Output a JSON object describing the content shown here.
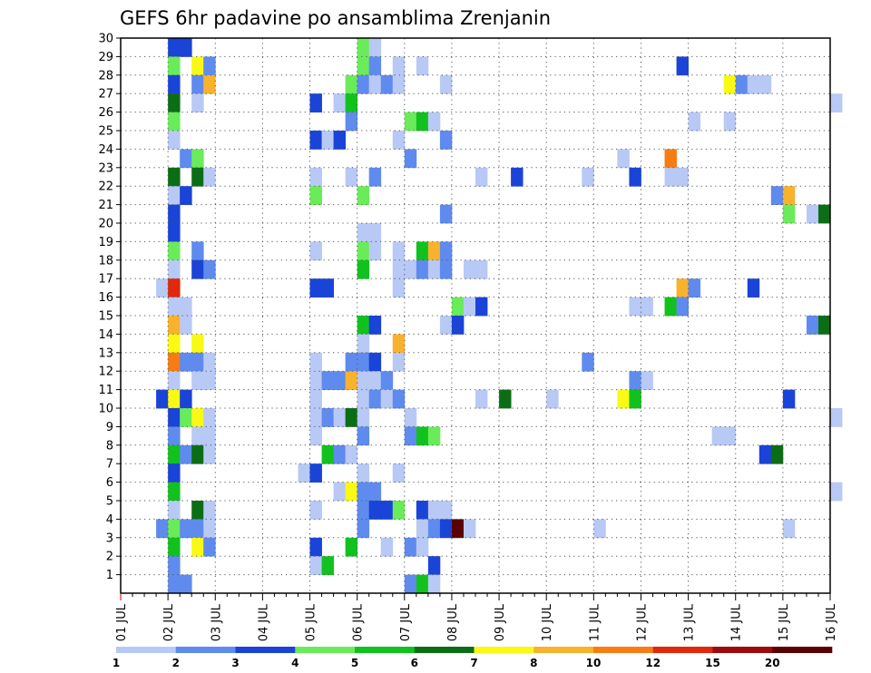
{
  "chart_data": {
    "type": "heatmap",
    "title": "GEFS 6hr padavine po ansamblima Zrenjanin",
    "xlabel": "",
    "ylabel": "",
    "x_ticks": [
      "01 JUL",
      "02 JUL",
      "03 JUL",
      "04 JUL",
      "05 JUL",
      "06 JUL",
      "07 JUL",
      "08 JUL",
      "09 JUL",
      "10 JUL",
      "11 JUL",
      "12 JUL",
      "13 JUL",
      "14 JUL",
      "15 JUL",
      "16 JUL"
    ],
    "y_ticks": [
      "1",
      "2",
      "3",
      "4",
      "5",
      "6",
      "7",
      "8",
      "9",
      "10",
      "11",
      "12",
      "13",
      "14",
      "15",
      "16",
      "17",
      "18",
      "19",
      "20",
      "21",
      "22",
      "23",
      "24",
      "25",
      "26",
      "27",
      "28",
      "29",
      "30"
    ],
    "xlim": [
      "01 JUL",
      "16 JUL"
    ],
    "ylim": [
      0,
      30
    ],
    "x_step_hours": 6,
    "grid": true,
    "colorbar": {
      "labels": [
        "1",
        "2",
        "3",
        "4",
        "5",
        "6",
        "7",
        "8",
        "10",
        "12",
        "15",
        "20"
      ],
      "colors": [
        "#b9c9f5",
        "#5f8bee",
        "#1a43d8",
        "#6aec5a",
        "#11c21e",
        "#0b6e14",
        "#f9f914",
        "#f9b22c",
        "#f77c14",
        "#e1280a",
        "#9c0a0a",
        "#5a0000"
      ]
    },
    "cells": [
      {
        "x": "02 JUL 00",
        "m": 30,
        "c": 3
      },
      {
        "x": "02 JUL 06",
        "m": 30,
        "c": 3
      },
      {
        "x": "06 JUL 00",
        "m": 30,
        "c": 4
      },
      {
        "x": "06 JUL 06",
        "m": 30,
        "c": 1
      },
      {
        "x": "02 JUL 00",
        "m": 29,
        "c": 4
      },
      {
        "x": "02 JUL 12",
        "m": 29,
        "c": 7
      },
      {
        "x": "02 JUL 18",
        "m": 29,
        "c": 2
      },
      {
        "x": "06 JUL 00",
        "m": 29,
        "c": 4
      },
      {
        "x": "06 JUL 06",
        "m": 29,
        "c": 2
      },
      {
        "x": "06 JUL 18",
        "m": 29,
        "c": 1
      },
      {
        "x": "07 JUL 06",
        "m": 29,
        "c": 1
      },
      {
        "x": "12 JUL 18",
        "m": 29,
        "c": 3
      },
      {
        "x": "02 JUL 00",
        "m": 28,
        "c": 3
      },
      {
        "x": "02 JUL 12",
        "m": 28,
        "c": 2
      },
      {
        "x": "02 JUL 18",
        "m": 28,
        "c": 8
      },
      {
        "x": "05 JUL 18",
        "m": 28,
        "c": 4
      },
      {
        "x": "06 JUL 00",
        "m": 28,
        "c": 2
      },
      {
        "x": "06 JUL 06",
        "m": 28,
        "c": 1
      },
      {
        "x": "06 JUL 12",
        "m": 28,
        "c": 2
      },
      {
        "x": "06 JUL 18",
        "m": 28,
        "c": 1
      },
      {
        "x": "07 JUL 18",
        "m": 28,
        "c": 1
      },
      {
        "x": "13 JUL 18",
        "m": 28,
        "c": 7
      },
      {
        "x": "14 JUL 00",
        "m": 28,
        "c": 2
      },
      {
        "x": "14 JUL 06",
        "m": 28,
        "c": 1
      },
      {
        "x": "14 JUL 12",
        "m": 28,
        "c": 1
      },
      {
        "x": "02 JUL 00",
        "m": 27,
        "c": 6
      },
      {
        "x": "02 JUL 12",
        "m": 27,
        "c": 1
      },
      {
        "x": "05 JUL 00",
        "m": 27,
        "c": 3
      },
      {
        "x": "05 JUL 12",
        "m": 27,
        "c": 1
      },
      {
        "x": "05 JUL 18",
        "m": 27,
        "c": 5
      },
      {
        "x": "16 JUL 00",
        "m": 27,
        "c": 1
      },
      {
        "x": "02 JUL 00",
        "m": 26,
        "c": 4
      },
      {
        "x": "05 JUL 18",
        "m": 26,
        "c": 2
      },
      {
        "x": "07 JUL 00",
        "m": 26,
        "c": 4
      },
      {
        "x": "07 JUL 06",
        "m": 26,
        "c": 5
      },
      {
        "x": "07 JUL 12",
        "m": 26,
        "c": 1
      },
      {
        "x": "13 JUL 00",
        "m": 26,
        "c": 1
      },
      {
        "x": "13 JUL 18",
        "m": 26,
        "c": 1
      },
      {
        "x": "02 JUL 00",
        "m": 25,
        "c": 1
      },
      {
        "x": "05 JUL 00",
        "m": 25,
        "c": 3
      },
      {
        "x": "05 JUL 06",
        "m": 25,
        "c": 1
      },
      {
        "x": "05 JUL 12",
        "m": 25,
        "c": 3
      },
      {
        "x": "06 JUL 18",
        "m": 25,
        "c": 1
      },
      {
        "x": "07 JUL 18",
        "m": 25,
        "c": 2
      },
      {
        "x": "02 JUL 06",
        "m": 24,
        "c": 2
      },
      {
        "x": "02 JUL 12",
        "m": 24,
        "c": 4
      },
      {
        "x": "07 JUL 00",
        "m": 24,
        "c": 2
      },
      {
        "x": "11 JUL 12",
        "m": 24,
        "c": 1
      },
      {
        "x": "12 JUL 12",
        "m": 24,
        "c": 9
      },
      {
        "x": "02 JUL 00",
        "m": 23,
        "c": 6
      },
      {
        "x": "02 JUL 12",
        "m": 23,
        "c": 6
      },
      {
        "x": "02 JUL 18",
        "m": 23,
        "c": 1
      },
      {
        "x": "05 JUL 00",
        "m": 23,
        "c": 1
      },
      {
        "x": "05 JUL 18",
        "m": 23,
        "c": 1
      },
      {
        "x": "06 JUL 06",
        "m": 23,
        "c": 2
      },
      {
        "x": "08 JUL 12",
        "m": 23,
        "c": 1
      },
      {
        "x": "09 JUL 06",
        "m": 23,
        "c": 3
      },
      {
        "x": "10 JUL 18",
        "m": 23,
        "c": 1
      },
      {
        "x": "11 JUL 18",
        "m": 23,
        "c": 3
      },
      {
        "x": "12 JUL 12",
        "m": 23,
        "c": 1
      },
      {
        "x": "12 JUL 18",
        "m": 23,
        "c": 1
      },
      {
        "x": "02 JUL 00",
        "m": 22,
        "c": 1
      },
      {
        "x": "02 JUL 06",
        "m": 22,
        "c": 3
      },
      {
        "x": "05 JUL 00",
        "m": 22,
        "c": 4
      },
      {
        "x": "06 JUL 00",
        "m": 22,
        "c": 4
      },
      {
        "x": "14 JUL 18",
        "m": 22,
        "c": 2
      },
      {
        "x": "15 JUL 00",
        "m": 22,
        "c": 8
      },
      {
        "x": "02 JUL 00",
        "m": 21,
        "c": 3
      },
      {
        "x": "07 JUL 18",
        "m": 21,
        "c": 2
      },
      {
        "x": "15 JUL 00",
        "m": 21,
        "c": 4
      },
      {
        "x": "15 JUL 12",
        "m": 21,
        "c": 1
      },
      {
        "x": "15 JUL 18",
        "m": 21,
        "c": 6
      },
      {
        "x": "02 JUL 00",
        "m": 20,
        "c": 3
      },
      {
        "x": "06 JUL 00",
        "m": 20,
        "c": 1
      },
      {
        "x": "06 JUL 06",
        "m": 20,
        "c": 1
      },
      {
        "x": "02 JUL 00",
        "m": 19,
        "c": 4
      },
      {
        "x": "02 JUL 12",
        "m": 19,
        "c": 2
      },
      {
        "x": "05 JUL 00",
        "m": 19,
        "c": 1
      },
      {
        "x": "06 JUL 00",
        "m": 19,
        "c": 4
      },
      {
        "x": "06 JUL 06",
        "m": 19,
        "c": 1
      },
      {
        "x": "06 JUL 18",
        "m": 19,
        "c": 1
      },
      {
        "x": "07 JUL 06",
        "m": 19,
        "c": 5
      },
      {
        "x": "07 JUL 12",
        "m": 19,
        "c": 8
      },
      {
        "x": "07 JUL 18",
        "m": 19,
        "c": 2
      },
      {
        "x": "02 JUL 00",
        "m": 18,
        "c": 1
      },
      {
        "x": "02 JUL 12",
        "m": 18,
        "c": 3
      },
      {
        "x": "02 JUL 18",
        "m": 18,
        "c": 2
      },
      {
        "x": "06 JUL 00",
        "m": 18,
        "c": 5
      },
      {
        "x": "06 JUL 18",
        "m": 18,
        "c": 1
      },
      {
        "x": "07 JUL 00",
        "m": 18,
        "c": 1
      },
      {
        "x": "07 JUL 06",
        "m": 18,
        "c": 2
      },
      {
        "x": "07 JUL 12",
        "m": 18,
        "c": 1
      },
      {
        "x": "07 JUL 18",
        "m": 18,
        "c": 2
      },
      {
        "x": "08 JUL 06",
        "m": 18,
        "c": 1
      },
      {
        "x": "08 JUL 12",
        "m": 18,
        "c": 1
      },
      {
        "x": "01 JUL 18",
        "m": 17,
        "c": 1
      },
      {
        "x": "02 JUL 00",
        "m": 17,
        "c": 10
      },
      {
        "x": "05 JUL 00",
        "m": 17,
        "c": 3
      },
      {
        "x": "05 JUL 06",
        "m": 17,
        "c": 3
      },
      {
        "x": "06 JUL 18",
        "m": 17,
        "c": 1
      },
      {
        "x": "12 JUL 18",
        "m": 17,
        "c": 8
      },
      {
        "x": "13 JUL 00",
        "m": 17,
        "c": 2
      },
      {
        "x": "14 JUL 06",
        "m": 17,
        "c": 3
      },
      {
        "x": "02 JUL 00",
        "m": 16,
        "c": 1
      },
      {
        "x": "02 JUL 06",
        "m": 16,
        "c": 1
      },
      {
        "x": "08 JUL 00",
        "m": 16,
        "c": 4
      },
      {
        "x": "08 JUL 06",
        "m": 16,
        "c": 1
      },
      {
        "x": "08 JUL 12",
        "m": 16,
        "c": 3
      },
      {
        "x": "11 JUL 18",
        "m": 16,
        "c": 1
      },
      {
        "x": "12 JUL 00",
        "m": 16,
        "c": 1
      },
      {
        "x": "12 JUL 12",
        "m": 16,
        "c": 5
      },
      {
        "x": "12 JUL 18",
        "m": 16,
        "c": 2
      },
      {
        "x": "02 JUL 00",
        "m": 15,
        "c": 8
      },
      {
        "x": "02 JUL 06",
        "m": 15,
        "c": 1
      },
      {
        "x": "06 JUL 00",
        "m": 15,
        "c": 5
      },
      {
        "x": "06 JUL 06",
        "m": 15,
        "c": 3
      },
      {
        "x": "07 JUL 18",
        "m": 15,
        "c": 1
      },
      {
        "x": "08 JUL 00",
        "m": 15,
        "c": 3
      },
      {
        "x": "15 JUL 12",
        "m": 15,
        "c": 2
      },
      {
        "x": "15 JUL 18",
        "m": 15,
        "c": 6
      },
      {
        "x": "02 JUL 00",
        "m": 14,
        "c": 7
      },
      {
        "x": "02 JUL 12",
        "m": 14,
        "c": 7
      },
      {
        "x": "06 JUL 00",
        "m": 14,
        "c": 1
      },
      {
        "x": "06 JUL 18",
        "m": 14,
        "c": 8
      },
      {
        "x": "02 JUL 00",
        "m": 13,
        "c": 9
      },
      {
        "x": "02 JUL 06",
        "m": 13,
        "c": 2
      },
      {
        "x": "02 JUL 12",
        "m": 13,
        "c": 2
      },
      {
        "x": "02 JUL 18",
        "m": 13,
        "c": 1
      },
      {
        "x": "05 JUL 00",
        "m": 13,
        "c": 1
      },
      {
        "x": "05 JUL 18",
        "m": 13,
        "c": 2
      },
      {
        "x": "06 JUL 00",
        "m": 13,
        "c": 2
      },
      {
        "x": "06 JUL 06",
        "m": 13,
        "c": 3
      },
      {
        "x": "06 JUL 18",
        "m": 13,
        "c": 1
      },
      {
        "x": "10 JUL 18",
        "m": 13,
        "c": 2
      },
      {
        "x": "02 JUL 00",
        "m": 12,
        "c": 1
      },
      {
        "x": "02 JUL 12",
        "m": 12,
        "c": 1
      },
      {
        "x": "02 JUL 18",
        "m": 12,
        "c": 1
      },
      {
        "x": "05 JUL 00",
        "m": 12,
        "c": 1
      },
      {
        "x": "05 JUL 06",
        "m": 12,
        "c": 2
      },
      {
        "x": "05 JUL 12",
        "m": 12,
        "c": 2
      },
      {
        "x": "05 JUL 18",
        "m": 12,
        "c": 8
      },
      {
        "x": "06 JUL 00",
        "m": 12,
        "c": 1
      },
      {
        "x": "06 JUL 06",
        "m": 12,
        "c": 1
      },
      {
        "x": "06 JUL 12",
        "m": 12,
        "c": 2
      },
      {
        "x": "11 JUL 18",
        "m": 12,
        "c": 2
      },
      {
        "x": "12 JUL 00",
        "m": 12,
        "c": 1
      },
      {
        "x": "01 JUL 18",
        "m": 11,
        "c": 3
      },
      {
        "x": "02 JUL 00",
        "m": 11,
        "c": 7
      },
      {
        "x": "02 JUL 06",
        "m": 11,
        "c": 3
      },
      {
        "x": "05 JUL 00",
        "m": 11,
        "c": 1
      },
      {
        "x": "06 JUL 00",
        "m": 11,
        "c": 1
      },
      {
        "x": "06 JUL 06",
        "m": 11,
        "c": 2
      },
      {
        "x": "06 JUL 12",
        "m": 11,
        "c": 1
      },
      {
        "x": "06 JUL 18",
        "m": 11,
        "c": 2
      },
      {
        "x": "08 JUL 12",
        "m": 11,
        "c": 1
      },
      {
        "x": "09 JUL 00",
        "m": 11,
        "c": 6
      },
      {
        "x": "10 JUL 00",
        "m": 11,
        "c": 1
      },
      {
        "x": "11 JUL 12",
        "m": 11,
        "c": 7
      },
      {
        "x": "11 JUL 18",
        "m": 11,
        "c": 5
      },
      {
        "x": "15 JUL 00",
        "m": 11,
        "c": 3
      },
      {
        "x": "02 JUL 00",
        "m": 10,
        "c": 3
      },
      {
        "x": "02 JUL 06",
        "m": 10,
        "c": 4
      },
      {
        "x": "02 JUL 12",
        "m": 10,
        "c": 7
      },
      {
        "x": "02 JUL 18",
        "m": 10,
        "c": 1
      },
      {
        "x": "05 JUL 00",
        "m": 10,
        "c": 1
      },
      {
        "x": "05 JUL 06",
        "m": 10,
        "c": 2
      },
      {
        "x": "05 JUL 12",
        "m": 10,
        "c": 1
      },
      {
        "x": "05 JUL 18",
        "m": 10,
        "c": 6
      },
      {
        "x": "06 JUL 00",
        "m": 10,
        "c": 1
      },
      {
        "x": "07 JUL 00",
        "m": 10,
        "c": 1
      },
      {
        "x": "16 JUL 00",
        "m": 10,
        "c": 1
      },
      {
        "x": "02 JUL 00",
        "m": 9,
        "c": 2
      },
      {
        "x": "02 JUL 12",
        "m": 9,
        "c": 1
      },
      {
        "x": "02 JUL 18",
        "m": 9,
        "c": 1
      },
      {
        "x": "05 JUL 00",
        "m": 9,
        "c": 1
      },
      {
        "x": "06 JUL 00",
        "m": 9,
        "c": 2
      },
      {
        "x": "07 JUL 00",
        "m": 9,
        "c": 2
      },
      {
        "x": "07 JUL 06",
        "m": 9,
        "c": 5
      },
      {
        "x": "07 JUL 12",
        "m": 9,
        "c": 4
      },
      {
        "x": "13 JUL 12",
        "m": 9,
        "c": 1
      },
      {
        "x": "13 JUL 18",
        "m": 9,
        "c": 1
      },
      {
        "x": "02 JUL 00",
        "m": 8,
        "c": 5
      },
      {
        "x": "02 JUL 06",
        "m": 8,
        "c": 2
      },
      {
        "x": "02 JUL 12",
        "m": 8,
        "c": 6
      },
      {
        "x": "02 JUL 18",
        "m": 8,
        "c": 1
      },
      {
        "x": "05 JUL 06",
        "m": 8,
        "c": 5
      },
      {
        "x": "05 JUL 12",
        "m": 8,
        "c": 2
      },
      {
        "x": "05 JUL 18",
        "m": 8,
        "c": 1
      },
      {
        "x": "14 JUL 12",
        "m": 8,
        "c": 3
      },
      {
        "x": "14 JUL 18",
        "m": 8,
        "c": 6
      },
      {
        "x": "02 JUL 00",
        "m": 7,
        "c": 3
      },
      {
        "x": "04 JUL 18",
        "m": 7,
        "c": 1
      },
      {
        "x": "05 JUL 00",
        "m": 7,
        "c": 3
      },
      {
        "x": "06 JUL 00",
        "m": 7,
        "c": 1
      },
      {
        "x": "06 JUL 18",
        "m": 7,
        "c": 1
      },
      {
        "x": "02 JUL 00",
        "m": 6,
        "c": 5
      },
      {
        "x": "05 JUL 12",
        "m": 6,
        "c": 1
      },
      {
        "x": "05 JUL 18",
        "m": 6,
        "c": 7
      },
      {
        "x": "06 JUL 00",
        "m": 6,
        "c": 2
      },
      {
        "x": "06 JUL 06",
        "m": 6,
        "c": 2
      },
      {
        "x": "16 JUL 00",
        "m": 6,
        "c": 1
      },
      {
        "x": "02 JUL 00",
        "m": 5,
        "c": 1
      },
      {
        "x": "02 JUL 12",
        "m": 5,
        "c": 6
      },
      {
        "x": "02 JUL 18",
        "m": 5,
        "c": 1
      },
      {
        "x": "05 JUL 00",
        "m": 5,
        "c": 1
      },
      {
        "x": "06 JUL 00",
        "m": 5,
        "c": 2
      },
      {
        "x": "06 JUL 06",
        "m": 5,
        "c": 3
      },
      {
        "x": "06 JUL 12",
        "m": 5,
        "c": 3
      },
      {
        "x": "06 JUL 18",
        "m": 5,
        "c": 4
      },
      {
        "x": "07 JUL 06",
        "m": 5,
        "c": 3
      },
      {
        "x": "07 JUL 12",
        "m": 5,
        "c": 1
      },
      {
        "x": "07 JUL 18",
        "m": 5,
        "c": 1
      },
      {
        "x": "01 JUL 18",
        "m": 4,
        "c": 2
      },
      {
        "x": "02 JUL 00",
        "m": 4,
        "c": 4
      },
      {
        "x": "02 JUL 06",
        "m": 4,
        "c": 2
      },
      {
        "x": "02 JUL 12",
        "m": 4,
        "c": 2
      },
      {
        "x": "02 JUL 18",
        "m": 4,
        "c": 1
      },
      {
        "x": "06 JUL 00",
        "m": 4,
        "c": 2
      },
      {
        "x": "07 JUL 06",
        "m": 4,
        "c": 1
      },
      {
        "x": "07 JUL 12",
        "m": 4,
        "c": 2
      },
      {
        "x": "07 JUL 18",
        "m": 4,
        "c": 3
      },
      {
        "x": "08 JUL 00",
        "m": 4,
        "c": 12
      },
      {
        "x": "08 JUL 06",
        "m": 4,
        "c": 1
      },
      {
        "x": "11 JUL 00",
        "m": 4,
        "c": 1
      },
      {
        "x": "15 JUL 00",
        "m": 4,
        "c": 1
      },
      {
        "x": "02 JUL 00",
        "m": 3,
        "c": 5
      },
      {
        "x": "02 JUL 12",
        "m": 3,
        "c": 7
      },
      {
        "x": "02 JUL 18",
        "m": 3,
        "c": 2
      },
      {
        "x": "05 JUL 00",
        "m": 3,
        "c": 3
      },
      {
        "x": "05 JUL 18",
        "m": 3,
        "c": 5
      },
      {
        "x": "06 JUL 12",
        "m": 3,
        "c": 1
      },
      {
        "x": "07 JUL 00",
        "m": 3,
        "c": 2
      },
      {
        "x": "07 JUL 06",
        "m": 3,
        "c": 1
      },
      {
        "x": "02 JUL 00",
        "m": 2,
        "c": 2
      },
      {
        "x": "05 JUL 00",
        "m": 2,
        "c": 1
      },
      {
        "x": "05 JUL 06",
        "m": 2,
        "c": 5
      },
      {
        "x": "07 JUL 12",
        "m": 2,
        "c": 3
      },
      {
        "x": "02 JUL 00",
        "m": 1,
        "c": 2
      },
      {
        "x": "02 JUL 06",
        "m": 1,
        "c": 2
      },
      {
        "x": "07 JUL 00",
        "m": 1,
        "c": 2
      },
      {
        "x": "07 JUL 06",
        "m": 1,
        "c": 5
      },
      {
        "x": "07 JUL 12",
        "m": 1,
        "c": 1
      }
    ]
  }
}
